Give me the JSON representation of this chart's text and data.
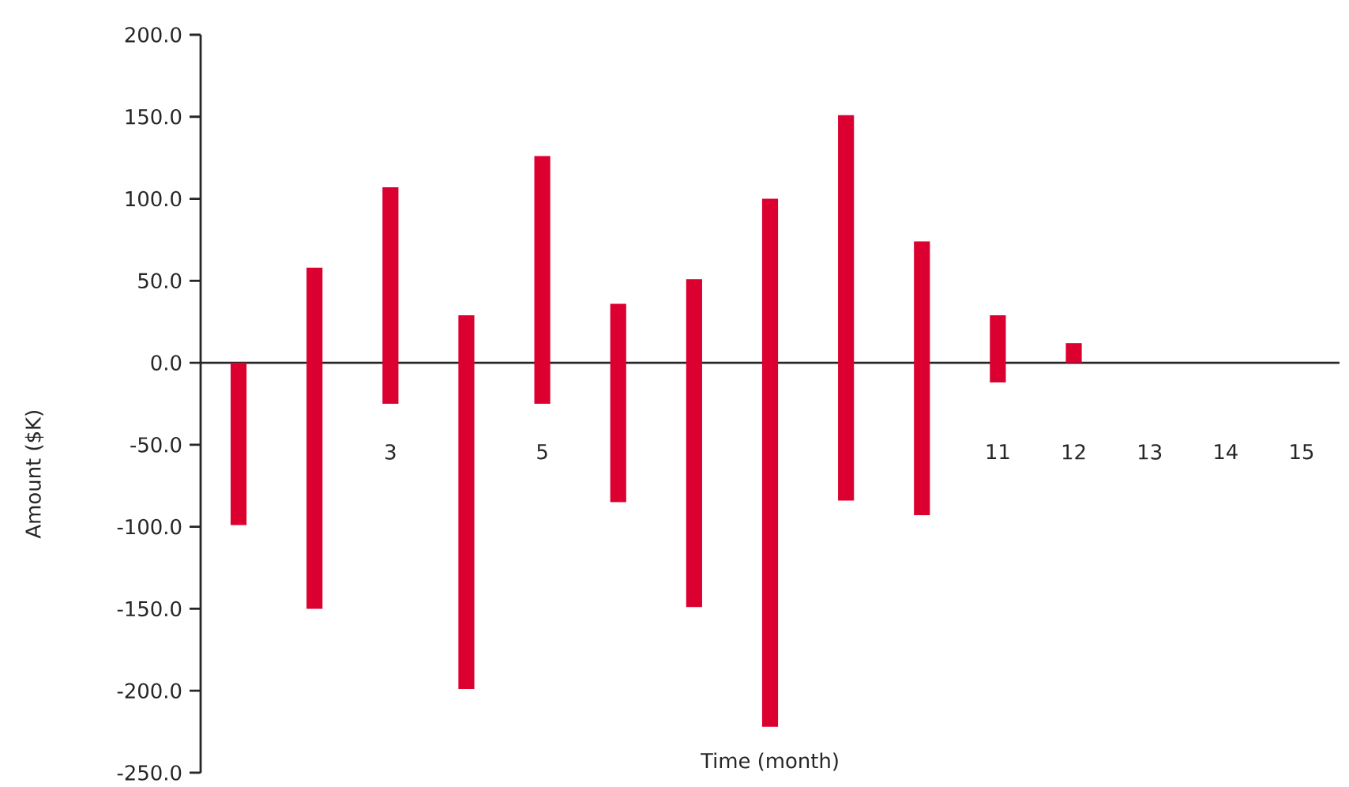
{
  "chart_data": {
    "type": "bar",
    "xlabel": "Time (month)",
    "ylabel": "Amount ($K)",
    "categories": [
      null,
      null,
      "3",
      null,
      "5",
      null,
      null,
      null,
      null,
      null,
      "11",
      "12",
      "13",
      "14",
      "15"
    ],
    "base": [
      -99,
      -150,
      -25,
      -199,
      -25,
      -85,
      -149,
      -222,
      -84,
      -93,
      -12,
      0,
      null,
      null,
      null
    ],
    "values": [
      99,
      208,
      132,
      228,
      151,
      121,
      200,
      322,
      235,
      167,
      41,
      12,
      null,
      null,
      null
    ],
    "color": "#dc0030",
    "ylim": [
      -250,
      200
    ],
    "yticks": [
      {
        "value": -250,
        "label": "-250.0"
      },
      {
        "value": -200,
        "label": "-200.0"
      },
      {
        "value": -150,
        "label": "-150.0"
      },
      {
        "value": -100,
        "label": "-100.0"
      },
      {
        "value": -50,
        "label": "-50.0"
      },
      {
        "value": 0,
        "label": "0.0"
      },
      {
        "value": 50,
        "label": "50.0"
      },
      {
        "value": 100,
        "label": "100.0"
      },
      {
        "value": 150,
        "label": "150.0"
      },
      {
        "value": 200,
        "label": "200.0"
      }
    ]
  }
}
